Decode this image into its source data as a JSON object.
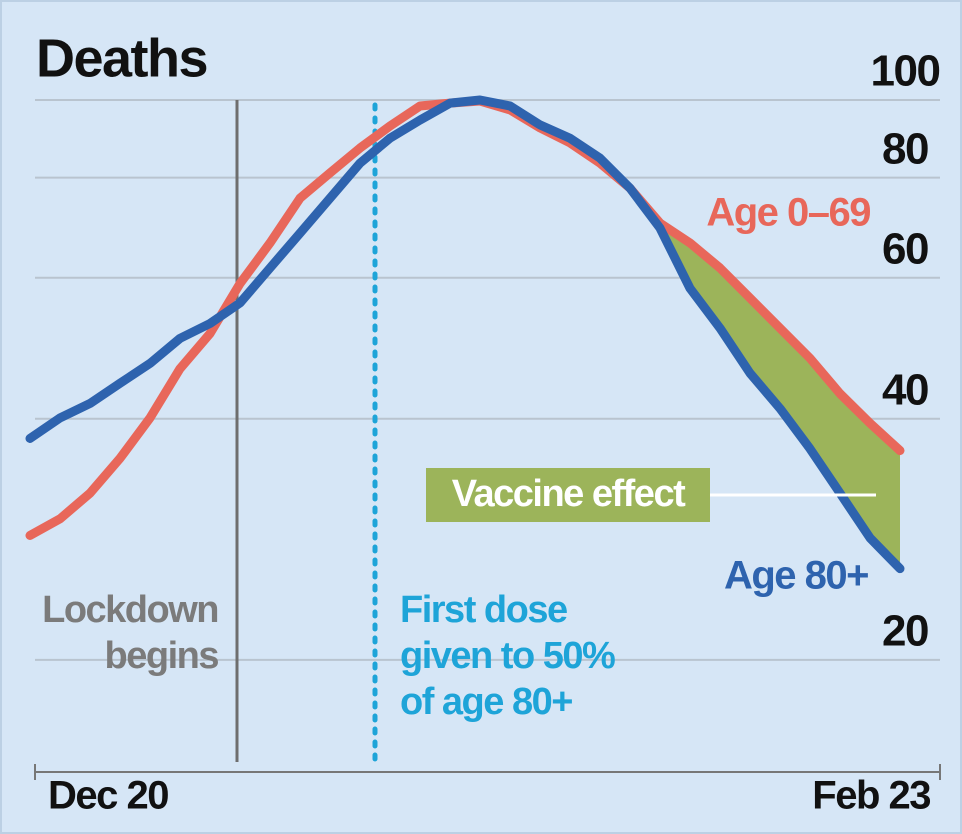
{
  "chart_data": {
    "type": "line",
    "title": "Deaths",
    "categories": [
      "Dec 20",
      null,
      null,
      null,
      null,
      null,
      null,
      null,
      null,
      null,
      null,
      null,
      null,
      null,
      null,
      null,
      null,
      null,
      null,
      null,
      null,
      null,
      null,
      null,
      null,
      null,
      null,
      null,
      null,
      "Feb 23"
    ],
    "series": [
      {
        "name": "Age 0–69",
        "color": "#e8675a",
        "values": [
          28.6,
          30.0,
          32.3,
          35.7,
          40.1,
          46.2,
          51.1,
          59.0,
          66.3,
          75.4,
          81.1,
          87.1,
          92.8,
          98.3,
          99.1,
          99.7,
          97.2,
          92.3,
          88.4,
          83.4,
          77.6,
          70.2,
          66.3,
          61.7,
          56.6,
          51.9,
          47.6,
          43.0,
          39.5,
          36.5
        ]
      },
      {
        "name": "Age 80+",
        "color": "#2e63ae",
        "values": [
          37.8,
          40.1,
          41.8,
          44.3,
          46.9,
          50.4,
          52.6,
          55.8,
          61.7,
          68.2,
          75.4,
          83.4,
          89.6,
          94.4,
          99.1,
          100,
          98.3,
          93.1,
          89.6,
          84.6,
          77.6,
          69.2,
          58.2,
          51.9,
          45.6,
          41.2,
          36.7,
          32.3,
          28.4,
          26.0
        ]
      }
    ],
    "ylim": [
      15,
      100
    ],
    "yticks": [
      20,
      40,
      60,
      80,
      100
    ],
    "log_scale": true,
    "grid": true,
    "annotations": {
      "lockdown": [
        "Lockdown",
        "begins"
      ],
      "first_dose": [
        "First dose",
        "given to 50%",
        "of age 80+"
      ],
      "vaccine_effect": "Vaccine effect"
    }
  }
}
